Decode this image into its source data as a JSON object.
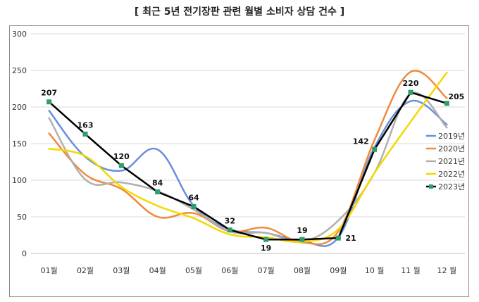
{
  "chart_data": {
    "type": "line",
    "title": "[ 최근 5년 전기장판 관련 월별 소비자 상담 건수 ]",
    "categories": [
      "01월",
      "02월",
      "03월",
      "04월",
      "05월",
      "06월",
      "07월",
      "08월",
      "09월",
      "10 월",
      "11 월",
      "12 월"
    ],
    "ylim": [
      0,
      300
    ],
    "yticks": [
      0,
      50,
      100,
      150,
      200,
      250,
      300
    ],
    "grid": true,
    "legend_position": "right",
    "series": [
      {
        "name": "2019년",
        "color": "#6a8fdc",
        "width": 2.5,
        "markers": false,
        "labels": false,
        "values": [
          195,
          132,
          113,
          142,
          65,
          33,
          28,
          17,
          22,
          145,
          208,
          176
        ]
      },
      {
        "name": "2020년",
        "color": "#f08a3c",
        "width": 2.5,
        "markers": false,
        "labels": false,
        "values": [
          164,
          108,
          88,
          50,
          55,
          30,
          35,
          15,
          30,
          155,
          248,
          212
        ]
      },
      {
        "name": "2021년",
        "color": "#b0b0b0",
        "width": 2.5,
        "markers": false,
        "labels": false,
        "values": [
          185,
          101,
          97,
          85,
          60,
          30,
          28,
          16,
          45,
          110,
          218,
          172
        ]
      },
      {
        "name": "2022년",
        "color": "#f5d800",
        "width": 2.5,
        "markers": false,
        "labels": false,
        "values": [
          143,
          133,
          91,
          65,
          48,
          26,
          22,
          16,
          33,
          110,
          180,
          247
        ]
      },
      {
        "name": "2023년",
        "color": "#000000",
        "width": 2.5,
        "markers": true,
        "labels": true,
        "marker_color": "#2e9e6a",
        "values": [
          207,
          163,
          120,
          84,
          64,
          32,
          19,
          19,
          21,
          142,
          220,
          205
        ]
      }
    ]
  }
}
